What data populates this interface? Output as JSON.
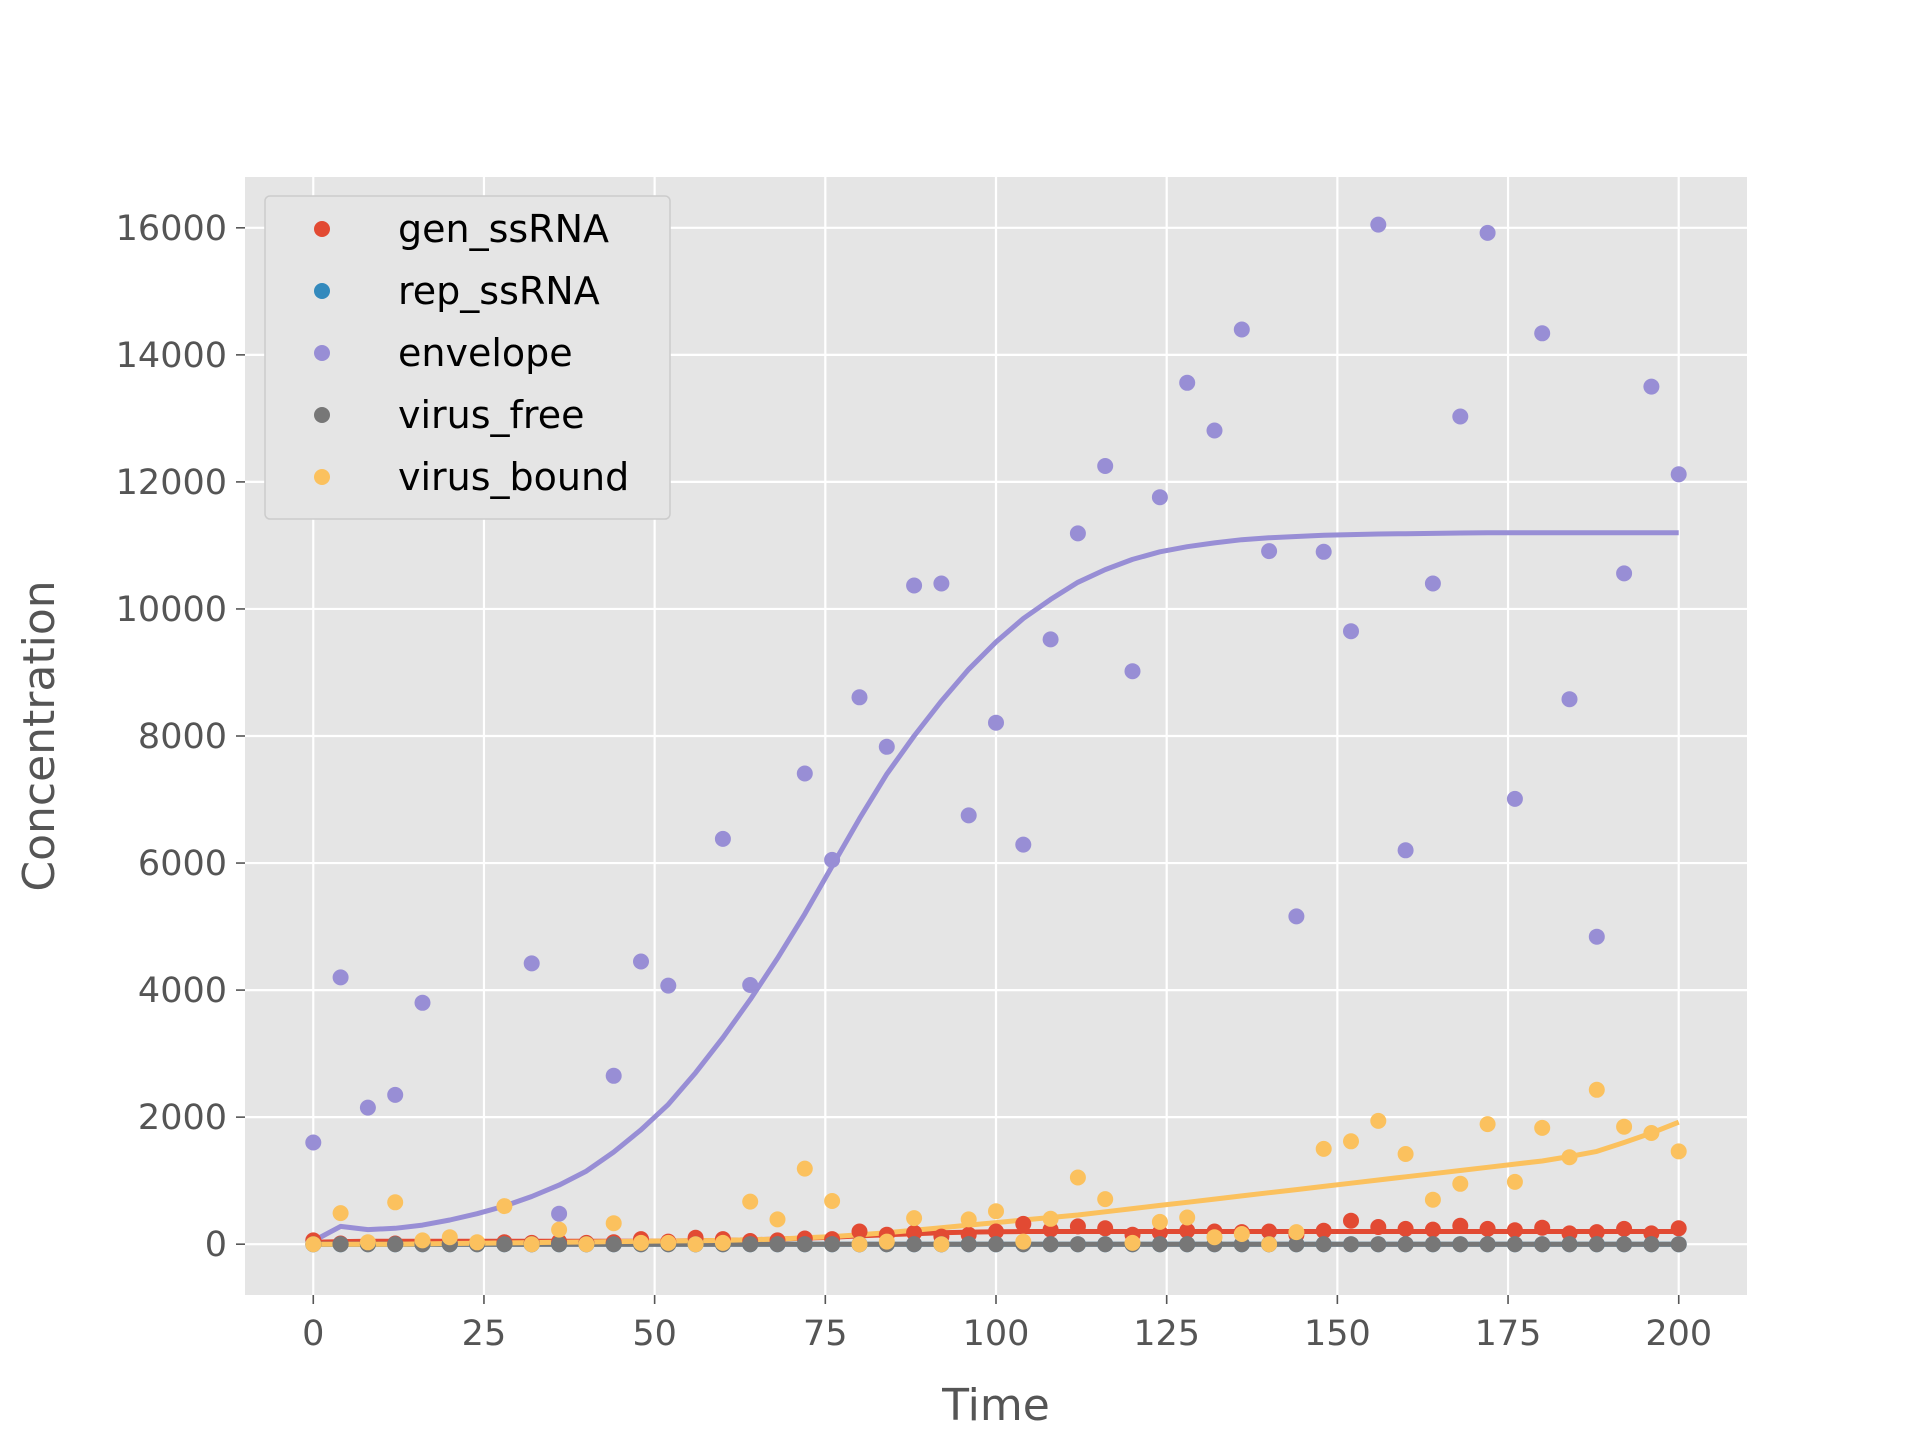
{
  "chart_data": {
    "type": "scatter",
    "xlabel": "Time",
    "ylabel": "Concentration",
    "xlim": [
      -10,
      210
    ],
    "ylim": [
      -800,
      16800
    ],
    "xticks": [
      0,
      25,
      50,
      75,
      100,
      125,
      150,
      175,
      200
    ],
    "yticks": [
      0,
      2000,
      4000,
      6000,
      8000,
      10000,
      12000,
      14000,
      16000
    ],
    "grid": true,
    "legend_position": "upper-left",
    "x": [
      0,
      4,
      8,
      12,
      16,
      20,
      24,
      28,
      32,
      36,
      40,
      44,
      48,
      52,
      56,
      60,
      64,
      68,
      72,
      76,
      80,
      84,
      88,
      92,
      96,
      100,
      104,
      108,
      112,
      116,
      120,
      124,
      128,
      132,
      136,
      140,
      144,
      148,
      152,
      156,
      160,
      164,
      168,
      172,
      176,
      180,
      184,
      188,
      192,
      196,
      200
    ],
    "series": [
      {
        "name": "gen_ssRNA",
        "color": "#E24A33",
        "points": [
          60,
          10,
          20,
          10,
          30,
          20,
          10,
          30,
          20,
          40,
          20,
          30,
          80,
          40,
          100,
          80,
          50,
          60,
          90,
          80,
          200,
          150,
          180,
          120,
          150,
          200,
          320,
          230,
          280,
          250,
          150,
          180,
          210,
          200,
          190,
          200,
          150,
          210,
          370,
          270,
          240,
          230,
          290,
          240,
          220,
          260,
          170,
          190,
          240,
          170,
          250
        ],
        "fit": [
          30,
          40,
          45,
          45,
          45,
          45,
          45,
          45,
          45,
          45,
          45,
          45,
          45,
          50,
          55,
          60,
          70,
          80,
          95,
          110,
          130,
          150,
          165,
          180,
          190,
          195,
          200,
          200,
          200,
          200,
          200,
          200,
          200,
          200,
          200,
          200,
          200,
          200,
          200,
          200,
          200,
          200,
          200,
          200,
          200,
          200,
          200,
          200,
          200,
          200,
          200
        ]
      },
      {
        "name": "rep_ssRNA",
        "color": "#348ABD",
        "points": [
          0,
          0,
          0,
          0,
          0,
          0,
          0,
          0,
          0,
          0,
          0,
          0,
          0,
          0,
          0,
          0,
          0,
          0,
          0,
          0,
          0,
          0,
          0,
          0,
          0,
          0,
          0,
          0,
          0,
          0,
          0,
          0,
          0,
          0,
          0,
          0,
          0,
          0,
          0,
          0,
          0,
          0,
          0,
          0,
          0,
          0,
          0,
          0,
          0,
          0,
          0
        ],
        "fit": [
          0,
          0,
          0,
          0,
          0,
          0,
          0,
          0,
          0,
          0,
          0,
          0,
          0,
          0,
          0,
          0,
          0,
          0,
          0,
          0,
          0,
          0,
          0,
          0,
          0,
          0,
          0,
          0,
          0,
          0,
          0,
          0,
          0,
          0,
          0,
          0,
          0,
          0,
          0,
          0,
          0,
          0,
          0,
          0,
          0,
          0,
          0,
          0,
          0,
          0,
          0
        ]
      },
      {
        "name": "envelope",
        "color": "#988ED5",
        "points": [
          1600,
          4200,
          2150,
          2350,
          3800,
          null,
          null,
          null,
          4420,
          480,
          null,
          2650,
          4450,
          4070,
          null,
          6380,
          4080,
          null,
          7410,
          6050,
          8610,
          7830,
          10370,
          10400,
          6750,
          8210,
          6290,
          9520,
          11190,
          12250,
          9020,
          11760,
          13560,
          12810,
          14400,
          10910,
          5160,
          10900,
          9650,
          16050,
          6200,
          10400,
          13030,
          15920,
          7010,
          14340,
          8580,
          4840,
          10560,
          13500,
          12120
        ],
        "fit": [
          50,
          280,
          230,
          250,
          300,
          380,
          480,
          600,
          750,
          930,
          1150,
          1450,
          1800,
          2200,
          2700,
          3250,
          3850,
          4500,
          5200,
          5950,
          6700,
          7400,
          8000,
          8550,
          9050,
          9480,
          9850,
          10150,
          10420,
          10620,
          10780,
          10900,
          10980,
          11040,
          11090,
          11120,
          11140,
          11160,
          11170,
          11180,
          11185,
          11190,
          11195,
          11200,
          11200,
          11200,
          11200,
          11200,
          11200,
          11200,
          11200
        ]
      },
      {
        "name": "virus_free",
        "color": "#777777",
        "points": [
          0,
          0,
          0,
          0,
          0,
          0,
          0,
          0,
          0,
          0,
          0,
          0,
          0,
          0,
          0,
          0,
          0,
          0,
          0,
          0,
          0,
          0,
          0,
          0,
          0,
          0,
          0,
          0,
          0,
          0,
          0,
          0,
          0,
          0,
          0,
          0,
          0,
          0,
          0,
          0,
          0,
          0,
          0,
          0,
          0,
          0,
          0,
          0,
          0,
          0,
          0
        ],
        "fit": [
          0,
          0,
          0,
          0,
          0,
          0,
          0,
          0,
          0,
          0,
          0,
          0,
          0,
          0,
          0,
          0,
          0,
          0,
          0,
          0,
          0,
          0,
          0,
          0,
          0,
          0,
          0,
          0,
          0,
          0,
          0,
          0,
          0,
          0,
          0,
          0,
          0,
          0,
          0,
          0,
          0,
          0,
          0,
          0,
          0,
          0,
          0,
          0,
          0,
          0,
          0
        ]
      },
      {
        "name": "virus_bound",
        "color": "#FBC15E",
        "points": [
          0,
          490,
          30,
          660,
          60,
          110,
          30,
          600,
          0,
          230,
          0,
          330,
          20,
          20,
          0,
          20,
          670,
          390,
          1190,
          680,
          0,
          40,
          410,
          0,
          390,
          520,
          40,
          400,
          1050,
          710,
          20,
          350,
          420,
          110,
          160,
          0,
          190,
          1500,
          1620,
          1940,
          1420,
          700,
          950,
          1890,
          980,
          1830,
          1370,
          2430,
          1850,
          1750,
          1460
        ],
        "fit": [
          0,
          0,
          0,
          0,
          5,
          10,
          15,
          20,
          25,
          30,
          35,
          40,
          45,
          50,
          55,
          60,
          70,
          80,
          100,
          120,
          150,
          180,
          220,
          260,
          300,
          340,
          380,
          420,
          460,
          510,
          560,
          610,
          660,
          710,
          760,
          810,
          860,
          910,
          960,
          1010,
          1060,
          1110,
          1160,
          1210,
          1260,
          1310,
          1380,
          1460,
          1600,
          1750,
          1920
        ]
      }
    ]
  }
}
